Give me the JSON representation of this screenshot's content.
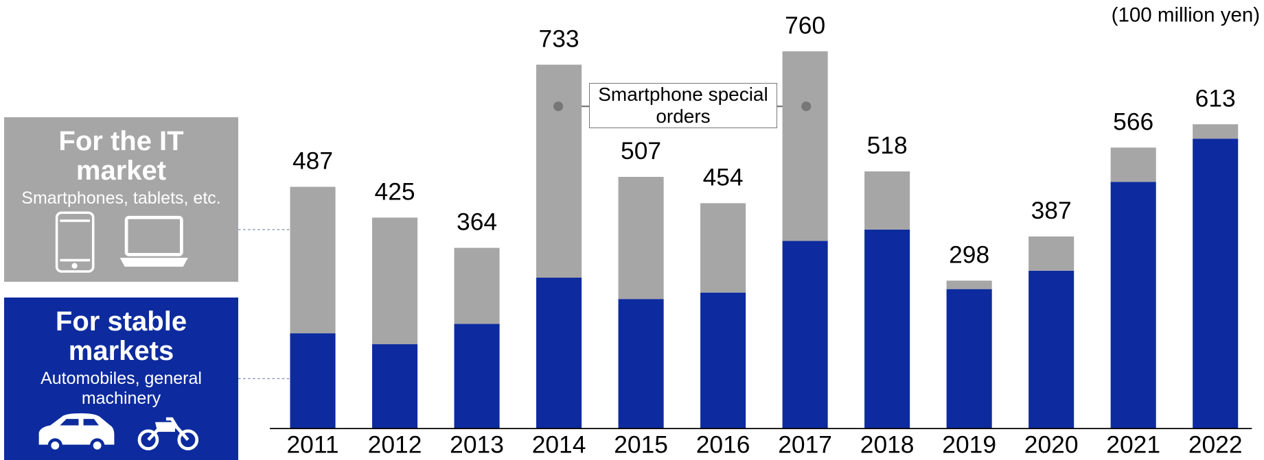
{
  "chart_data": {
    "type": "stacked_bar",
    "unit": "(100 million yen)",
    "annotation": "Smartphone special orders",
    "categories": [
      "2011",
      "2012",
      "2013",
      "2014",
      "2015",
      "2016",
      "2017",
      "2018",
      "2019",
      "2020",
      "2021",
      "2022"
    ],
    "totals": [
      487,
      425,
      364,
      733,
      507,
      454,
      760,
      518,
      298,
      387,
      566,
      613
    ],
    "series": [
      {
        "name": "For stable markets",
        "description": "Automobiles, general machinery",
        "color": "#0d2b9e",
        "values": [
          192,
          170,
          211,
          304,
          261,
          274,
          378,
          401,
          281,
          318,
          497,
          584
        ]
      },
      {
        "name": "For the IT market",
        "description": "Smartphones, tablets, etc.",
        "color": "#a6a6a6",
        "values": [
          295,
          255,
          153,
          429,
          246,
          180,
          382,
          117,
          17,
          69,
          69,
          29
        ]
      }
    ],
    "ylim": [
      0,
      800
    ]
  }
}
